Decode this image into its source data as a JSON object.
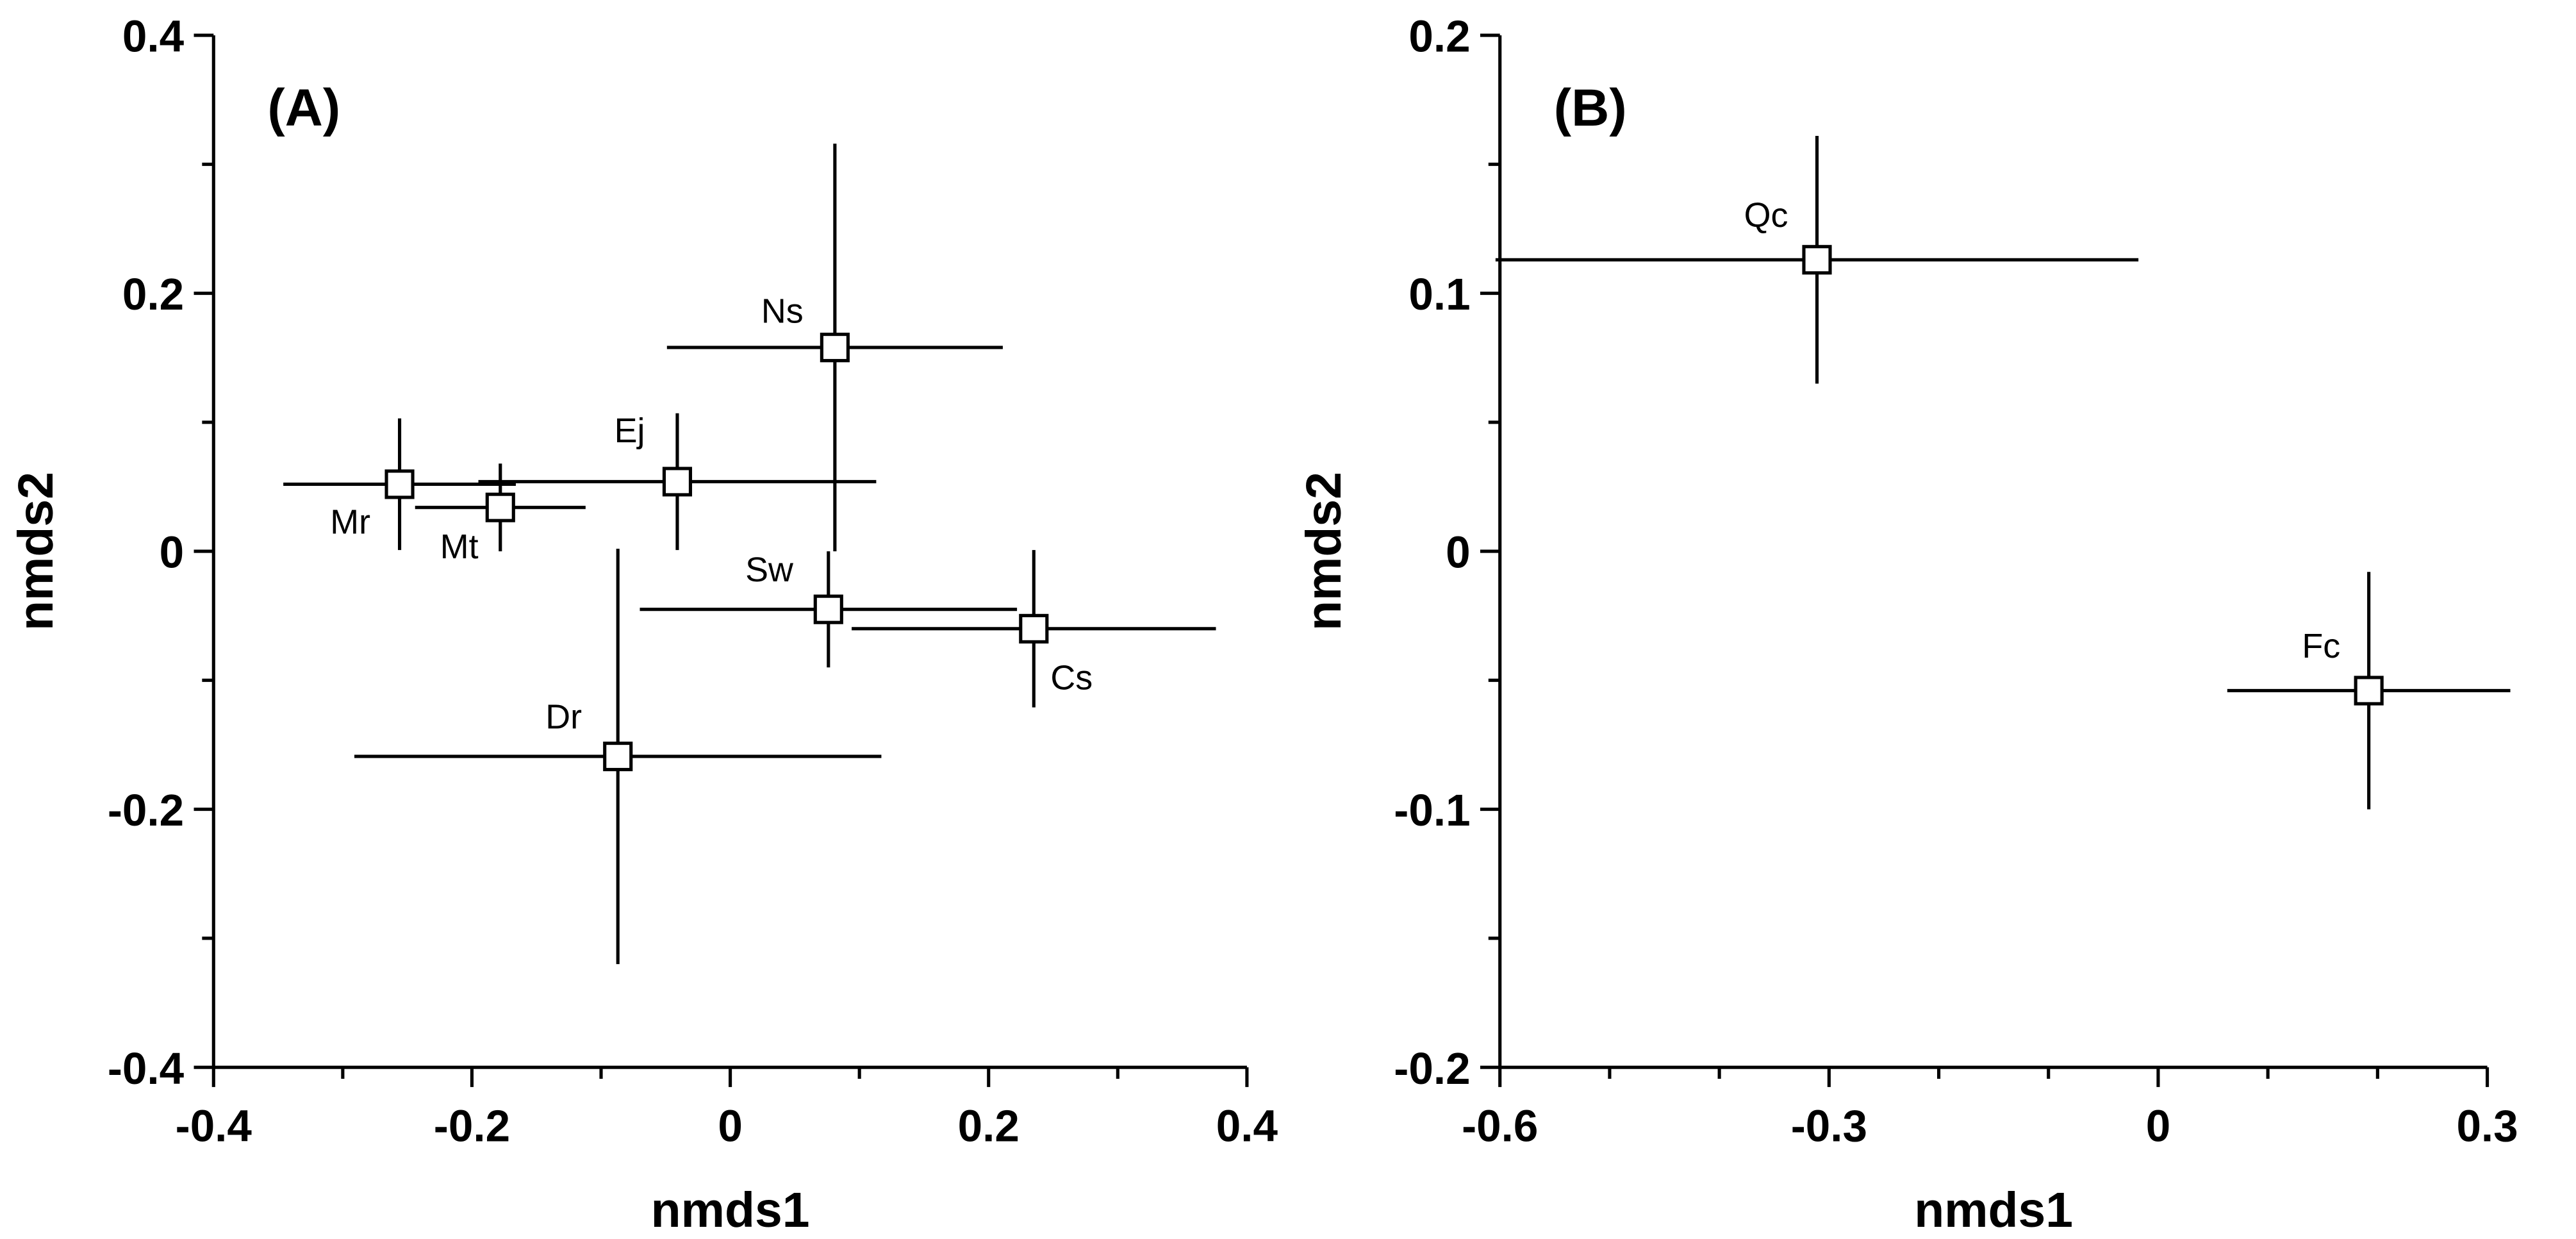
{
  "chart_data": [
    {
      "type": "scatter",
      "title": "(A)",
      "x_label": "nmds1",
      "y_label": "nmds2",
      "labels": [
        "Mr",
        "Mt",
        "Ej",
        "Ns",
        "Sw",
        "Cs",
        "Dr"
      ],
      "x": [
        -0.256,
        -0.178,
        -0.041,
        0.081,
        0.076,
        0.235,
        -0.087
      ],
      "values": [
        0.052,
        0.034,
        0.054,
        0.158,
        -0.045,
        -0.06,
        -0.159
      ],
      "xerr": [
        0.09,
        0.066,
        0.154,
        0.13,
        0.146,
        0.141,
        0.204
      ],
      "yerr": [
        0.051,
        0.034,
        0.053,
        0.158,
        0.045,
        0.061,
        0.161
      ],
      "color": "#000000",
      "xlim": [
        -0.4,
        0.4
      ],
      "xticks": [
        -0.4,
        -0.2,
        0,
        0.2,
        0.4
      ],
      "xminor": [
        -0.3,
        -0.1,
        0.1,
        0.3
      ],
      "ylim": [
        -0.4,
        0.4
      ],
      "yticks": [
        -0.4,
        -0.2,
        0,
        0.2,
        0.4
      ],
      "yminor": [
        -0.3,
        -0.1,
        0.1,
        0.3
      ]
    },
    {
      "type": "scatter",
      "title": "(B)",
      "x_label": "nmds1",
      "y_label": "nmds2",
      "labels": [
        "Qc",
        "Fc"
      ],
      "x": [
        -0.311,
        0.192
      ],
      "values": [
        0.113,
        -0.054
      ],
      "xerr": [
        0.293,
        0.129
      ],
      "yerr": [
        0.048,
        0.046
      ],
      "color": "#000000",
      "xlim": [
        -0.6,
        0.3
      ],
      "xticks": [
        -0.6,
        -0.3,
        0,
        0.3
      ],
      "xminor": [
        -0.5,
        -0.4,
        -0.2,
        -0.1,
        0.1,
        0.2
      ],
      "ylim": [
        -0.2,
        0.2
      ],
      "yticks": [
        -0.2,
        -0.1,
        0,
        0.1,
        0.2
      ],
      "yminor": [
        -0.15,
        -0.05,
        0.05,
        0.15
      ]
    }
  ]
}
